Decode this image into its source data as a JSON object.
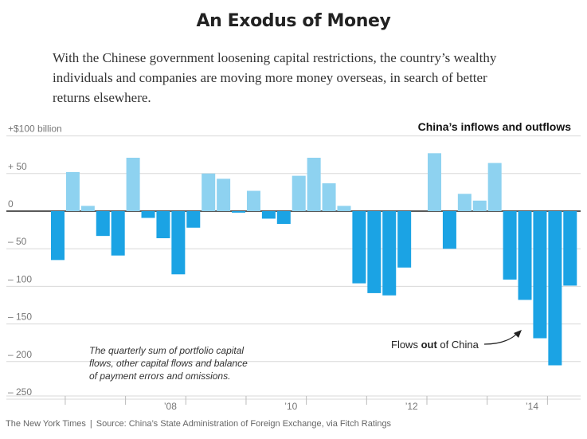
{
  "headline": "An Exodus of Money",
  "dek": {
    "lines": [
      "With the Chinese government loosening capital restrictions, the country’s wealthy",
      "individuals and companies are moving more money overseas, in search of better",
      "returns elsewhere."
    ]
  },
  "credit": {
    "publisher": "The New York Times",
    "separator": "|",
    "source": "Source: China’s State Administration of Foreign Exchange, via Fitch Ratings"
  },
  "chart_data": {
    "type": "bar",
    "title": "China’s inflows and outflows",
    "ylabel": "",
    "ylim": [
      -260,
      110
    ],
    "yticks": [
      {
        "value": 100,
        "label": "+$100 billion"
      },
      {
        "value": 50,
        "label": "+  50"
      },
      {
        "value": 0,
        "label": "0"
      },
      {
        "value": -50,
        "label": "–  50"
      },
      {
        "value": -100,
        "label": "–  100"
      },
      {
        "value": -150,
        "label": "–  150"
      },
      {
        "value": -200,
        "label": "–  200"
      },
      {
        "value": -250,
        "label": "–  250"
      }
    ],
    "xticks": [
      {
        "index": 7,
        "label": "’08"
      },
      {
        "index": 15,
        "label": "’10"
      },
      {
        "index": 23,
        "label": "’12"
      },
      {
        "index": 31,
        "label": "’14"
      }
    ],
    "values": [
      -65,
      52,
      7,
      -33,
      -59,
      71,
      -9,
      -36,
      -84,
      -22,
      50,
      43,
      -2,
      27,
      -10,
      -17,
      47,
      71,
      37,
      7,
      -96,
      -109,
      -112,
      -75,
      0,
      77,
      -50,
      23,
      14,
      64,
      -91,
      -118,
      -169,
      -205,
      -99
    ],
    "colors": {
      "inflow": "#8ed2f0",
      "outflow": "#1ba3e4",
      "grid": "#d8d8d8",
      "zero": "#222222",
      "tick_text": "#777777"
    },
    "annotations": {
      "note_lines": [
        "The quarterly sum of portfolio capital",
        "flows, other capital flows and balance",
        "of payment errors and omissions."
      ],
      "callout_before": "Flows ",
      "callout_bold": "out",
      "callout_after": " of China"
    }
  }
}
